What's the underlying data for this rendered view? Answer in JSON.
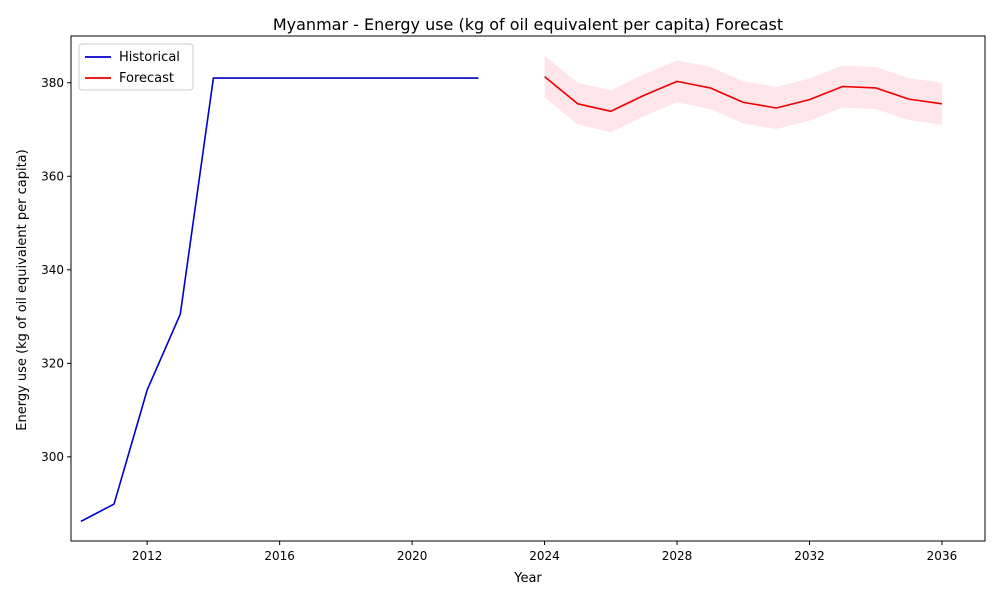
{
  "chart_data": {
    "type": "line",
    "title": "Myanmar - Energy use (kg of oil equivalent per capita) Forecast",
    "xlabel": "Year",
    "ylabel": "Energy use (kg of oil equivalent per capita)",
    "xlim": [
      2009.7,
      2037.3
    ],
    "ylim": [
      282,
      390
    ],
    "x_ticks": [
      2012,
      2016,
      2020,
      2024,
      2028,
      2032,
      2036
    ],
    "y_ticks": [
      300,
      320,
      340,
      360,
      380
    ],
    "grid": false,
    "legend_position": "top-left",
    "series": [
      {
        "name": "Historical",
        "color": "#0000cc",
        "x": [
          2010,
          2011,
          2012,
          2013,
          2014,
          2015,
          2016,
          2017,
          2018,
          2019,
          2020,
          2021,
          2022
        ],
        "y": [
          286.2,
          289.9,
          314.3,
          330.5,
          381.0,
          381.0,
          381.0,
          381.0,
          381.0,
          381.0,
          381.0,
          381.0,
          381.0
        ]
      },
      {
        "name": "Forecast",
        "color": "#ee0000",
        "x": [
          2024,
          2025,
          2026,
          2027,
          2028,
          2029,
          2030,
          2031,
          2032,
          2033,
          2034,
          2035,
          2036
        ],
        "y": [
          381.3,
          375.5,
          373.9,
          377.3,
          380.3,
          378.9,
          375.8,
          374.6,
          376.4,
          379.2,
          378.9,
          376.5,
          375.5
        ],
        "lower": [
          376.8,
          371.1,
          369.4,
          372.8,
          375.8,
          374.4,
          371.3,
          370.1,
          371.9,
          374.7,
          374.4,
          372.0,
          371.0
        ],
        "upper": [
          385.8,
          380.0,
          378.4,
          381.8,
          384.8,
          383.4,
          380.3,
          379.1,
          380.9,
          383.7,
          383.4,
          381.0,
          380.0
        ],
        "band_color": "#ffc0cb"
      }
    ]
  }
}
